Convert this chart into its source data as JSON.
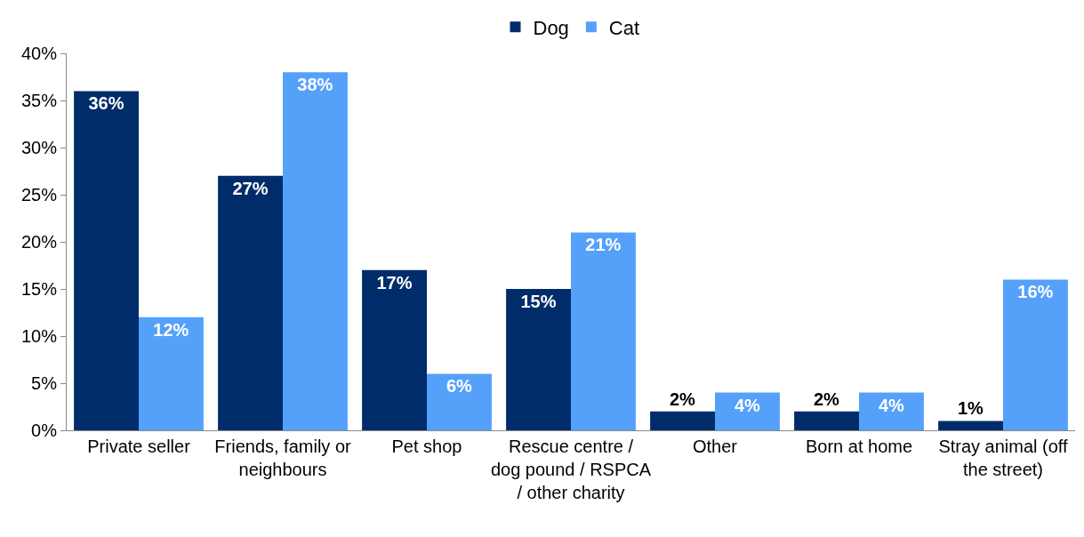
{
  "chart_data": {
    "type": "bar",
    "categories": [
      "Private seller",
      "Friends, family or neighbours",
      "Pet shop",
      "Rescue centre / dog pound / RSPCA / other charity",
      "Other",
      "Born at home",
      "Stray animal (off the street)"
    ],
    "series": [
      {
        "name": "Dog",
        "color": "#002d69",
        "values": [
          36,
          27,
          17,
          15,
          2,
          2,
          1
        ],
        "value_labels": [
          "36%",
          "27%",
          "17%",
          "15%",
          "2%",
          "2%",
          "1%"
        ]
      },
      {
        "name": "Cat",
        "color": "#55a1fa",
        "values": [
          12,
          38,
          6,
          21,
          4,
          4,
          16
        ],
        "value_labels": [
          "12%",
          "38%",
          "6%",
          "21%",
          "4%",
          "4%",
          "16%"
        ]
      }
    ],
    "ylim": [
      0,
      40
    ],
    "yticks": [
      {
        "value": 0,
        "label": "0%"
      },
      {
        "value": 5,
        "label": "5%"
      },
      {
        "value": 10,
        "label": "10%"
      },
      {
        "value": 15,
        "label": "15%"
      },
      {
        "value": 20,
        "label": "20%"
      },
      {
        "value": 25,
        "label": "25%"
      },
      {
        "value": 30,
        "label": "30%"
      },
      {
        "value": 35,
        "label": "35%"
      },
      {
        "value": 40,
        "label": "40%"
      }
    ],
    "grid": false,
    "legend": "top"
  }
}
